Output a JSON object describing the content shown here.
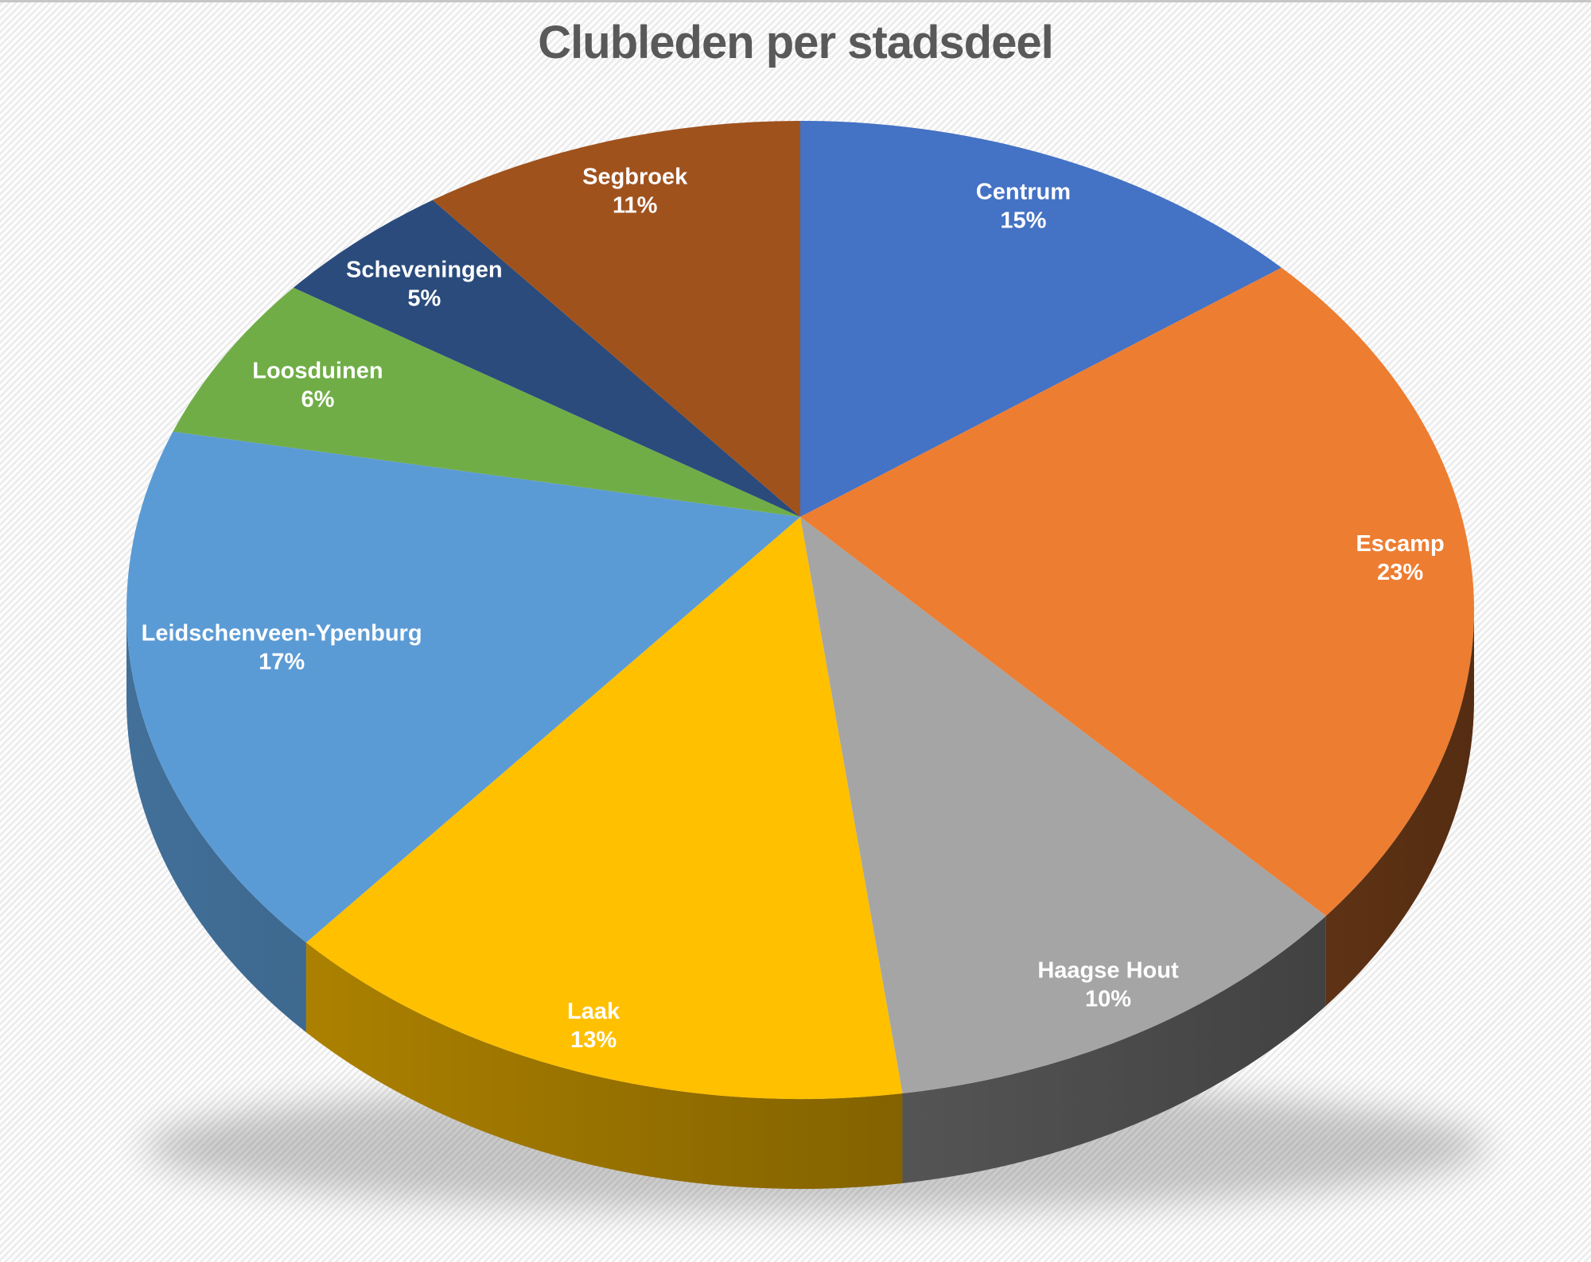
{
  "title": "Clubleden per stadsdeel",
  "chart_data": {
    "type": "pie",
    "style": "3d-pie",
    "title": "Clubleden per stadsdeel",
    "value_unit": "percent",
    "start_angle_deg": 0,
    "direction": "clockwise",
    "legend_position": "none",
    "data_labels": "category name + percent inside slices, white bold text",
    "categories": [
      "Centrum",
      "Escamp",
      "Haagse Hout",
      "Laak",
      "Leidschenveen-Ypenburg",
      "Loosduinen",
      "Scheveningen",
      "Segbroek"
    ],
    "values": [
      15,
      23,
      10,
      13,
      17,
      6,
      5,
      11
    ],
    "slices": [
      {
        "label": "Centrum",
        "percent": 15,
        "color": "#4472C4"
      },
      {
        "label": "Escamp",
        "percent": 23,
        "color": "#ED7D31"
      },
      {
        "label": "Haagse Hout",
        "percent": 10,
        "color": "#A5A5A5"
      },
      {
        "label": "Laak",
        "percent": 13,
        "color": "#FFC000"
      },
      {
        "label": "Leidschenveen-Ypenburg",
        "percent": 17,
        "color": "#5B9BD5"
      },
      {
        "label": "Loosduinen",
        "percent": 6,
        "color": "#70AD47"
      },
      {
        "label": "Scheveningen",
        "percent": 5,
        "color": "#2A4B7C"
      },
      {
        "label": "Segbroek",
        "percent": 11,
        "color": "#A0521D"
      }
    ],
    "title_color": "#595959",
    "label_text_color": "#FFFFFF",
    "background": "white with thin light-gray diagonal stripes"
  }
}
